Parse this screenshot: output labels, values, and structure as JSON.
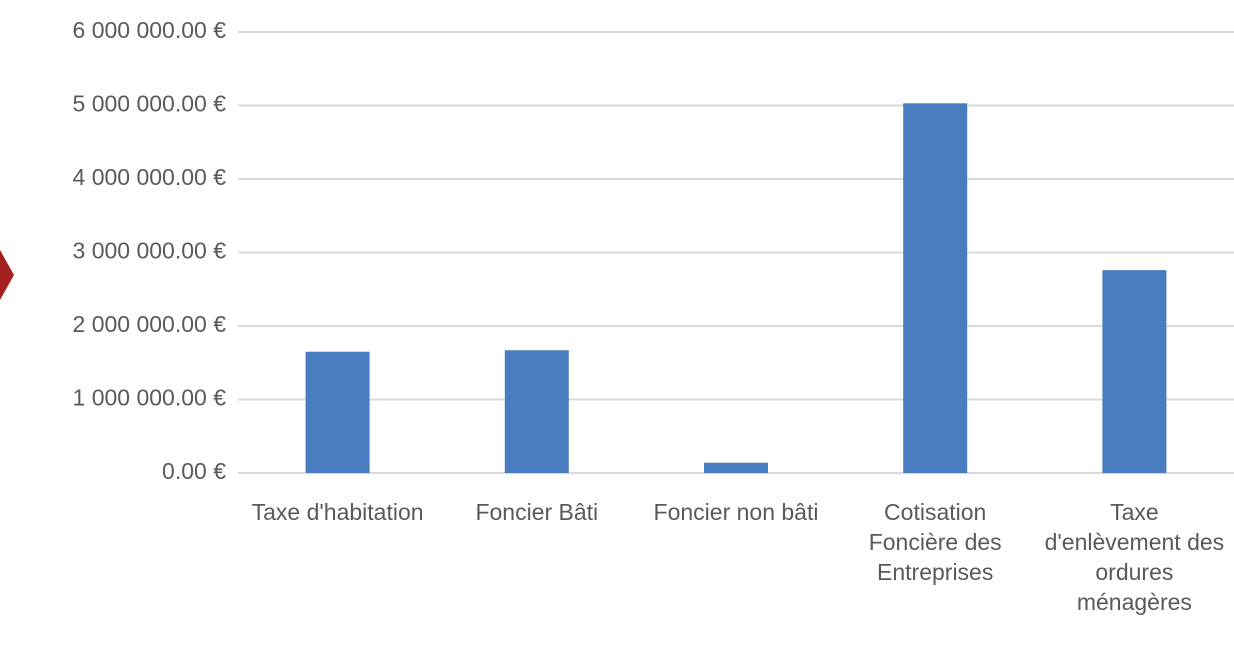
{
  "chart_data": {
    "type": "bar",
    "categories": [
      "Taxe d'habitation",
      "Foncier Bâti",
      "Foncier non bâti",
      "Cotisation Foncière des Entreprises",
      "Taxe d'enlèvement des ordures ménagères"
    ],
    "values": [
      1650000,
      1670000,
      140000,
      5030000,
      2760000
    ],
    "color": "#4a7cc0",
    "ylim": [
      0,
      6000000
    ],
    "yticks": [
      {
        "value": 0,
        "label": "0.00 €"
      },
      {
        "value": 1000000,
        "label": "1 000 000.00 €"
      },
      {
        "value": 2000000,
        "label": "2 000 000.00 €"
      },
      {
        "value": 3000000,
        "label": "3 000 000.00 €"
      },
      {
        "value": 4000000,
        "label": "4 000 000.00 €"
      },
      {
        "value": 5000000,
        "label": "5 000 000.00 €"
      },
      {
        "value": 6000000,
        "label": "6 000 000.00 €"
      }
    ],
    "grid": true
  }
}
